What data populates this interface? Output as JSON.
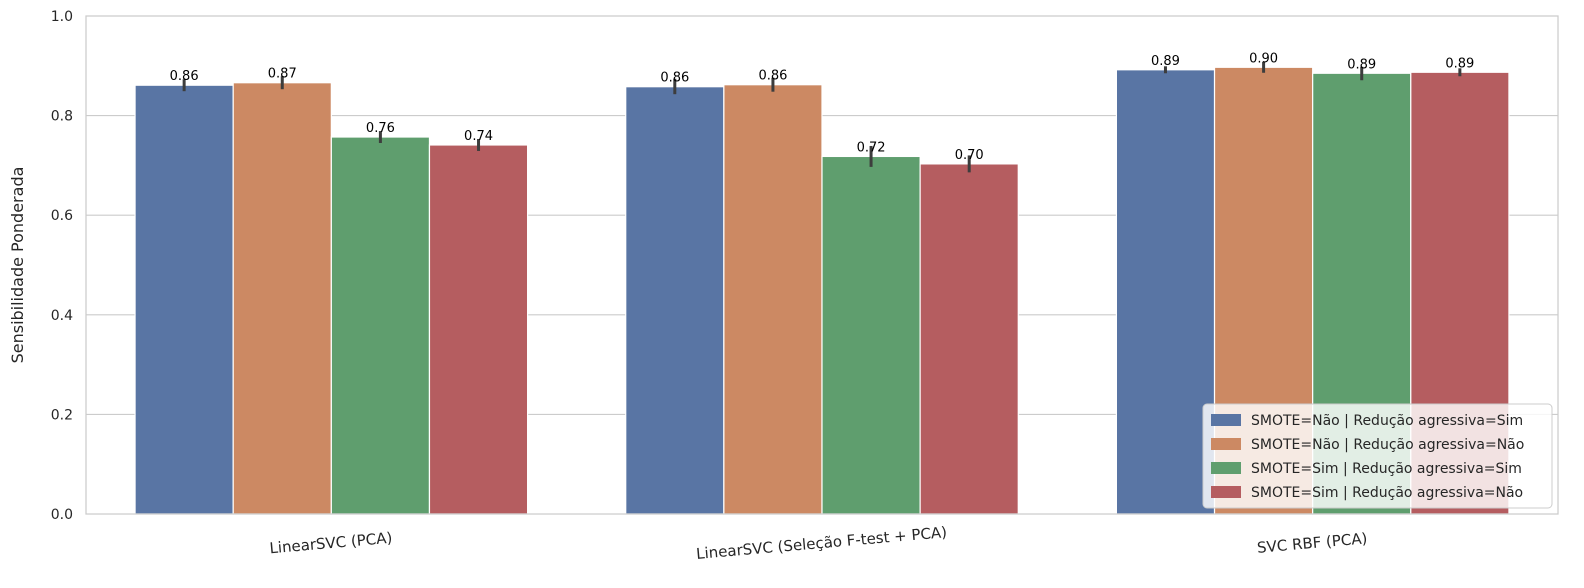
{
  "chart_data": {
    "type": "bar",
    "title": "",
    "xlabel": "",
    "ylabel": "Sensibilidade Ponderada",
    "ylim": [
      0,
      1
    ],
    "yticks": [
      "0.0",
      "0.2",
      "0.4",
      "0.6",
      "0.8",
      "1.0"
    ],
    "ytick_values": [
      0,
      0.2,
      0.4,
      0.6,
      0.8,
      1.0
    ],
    "grid": true,
    "legend_position": "bottom-right",
    "categories": [
      "LinearSVC (PCA)",
      "LinearSVC (Seleção F-test + PCA)",
      "SVC RBF (PCA)"
    ],
    "series": [
      {
        "name": "SMOTE=Não | Redução agressiva=Sim",
        "color": "#5975a4",
        "values": [
          0.861,
          0.858,
          0.892
        ],
        "labels": [
          "0.86",
          "0.86",
          "0.89"
        ],
        "error_low": [
          0.849,
          0.843,
          0.885
        ],
        "error_high": [
          0.873,
          0.874,
          0.899
        ]
      },
      {
        "name": "SMOTE=Não | Redução agressiva=Não",
        "color": "#cc8963",
        "values": [
          0.866,
          0.862,
          0.897
        ],
        "labels": [
          "0.87",
          "0.86",
          "0.90"
        ],
        "error_low": [
          0.853,
          0.848,
          0.886
        ],
        "error_high": [
          0.879,
          0.876,
          0.908
        ]
      },
      {
        "name": "SMOTE=Sim | Redução agressiva=Sim",
        "color": "#5f9e6e",
        "values": [
          0.757,
          0.718,
          0.885
        ],
        "labels": [
          "0.76",
          "0.72",
          "0.89"
        ],
        "error_low": [
          0.745,
          0.697,
          0.871
        ],
        "error_high": [
          0.769,
          0.739,
          0.898
        ]
      },
      {
        "name": "SMOTE=Sim | Redução agressiva=Não",
        "color": "#b55d60",
        "values": [
          0.741,
          0.703,
          0.887
        ],
        "labels": [
          "0.74",
          "0.70",
          "0.89"
        ],
        "error_low": [
          0.729,
          0.686,
          0.879
        ],
        "error_high": [
          0.753,
          0.72,
          0.895
        ]
      }
    ]
  }
}
